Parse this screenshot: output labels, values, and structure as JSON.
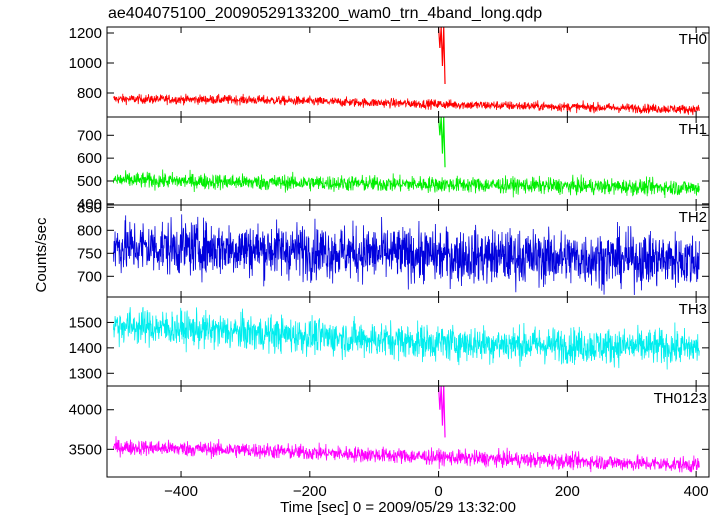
{
  "chart_data": {
    "type": "line",
    "title": "ae404075100_20090529133200_wam0_trn_4band_long.qdp",
    "xlabel": "Time [sec] 0 = 2009/05/29 13:32:00",
    "ylabel": "Counts/sec",
    "xlim": [
      -515,
      420
    ],
    "x_ticks": [
      -400,
      -200,
      0,
      200,
      400
    ],
    "x_tick_labels": [
      "−400",
      "−200",
      "0",
      "200",
      "400"
    ],
    "grid": false,
    "panels": [
      {
        "name": "TH0",
        "color": "#ff0000",
        "ylim": [
          640,
          1240
        ],
        "y_ticks": [
          800,
          1000,
          1200
        ],
        "series_profile": {
          "x": [
            -505,
            -300,
            0,
            405
          ],
          "y": [
            760,
            755,
            725,
            690
          ]
        },
        "noise": 22,
        "spike": {
          "x": [
            0,
            2,
            4,
            6,
            8,
            10
          ],
          "y": [
            1240,
            1100,
            1240,
            980,
            1240,
            860
          ]
        }
      },
      {
        "name": "TH1",
        "color": "#00ee00",
        "ylim": [
          395,
          780
        ],
        "y_ticks": [
          400,
          500,
          600,
          700
        ],
        "series_profile": {
          "x": [
            -505,
            -300,
            0,
            405
          ],
          "y": [
            505,
            495,
            485,
            470
          ]
        },
        "noise": 25,
        "spike": {
          "x": [
            0,
            2,
            4,
            6,
            8,
            10
          ],
          "y": [
            780,
            700,
            780,
            620,
            780,
            560
          ]
        }
      },
      {
        "name": "TH2",
        "color": "#0000dd",
        "ylim": [
          655,
          855
        ],
        "y_ticks": [
          700,
          750,
          800,
          850
        ],
        "series_profile": {
          "x": [
            -505,
            -300,
            0,
            405
          ],
          "y": [
            765,
            760,
            745,
            735
          ]
        },
        "noise": 42,
        "spike": null
      },
      {
        "name": "TH3",
        "color": "#00eeee",
        "ylim": [
          1250,
          1600
        ],
        "y_ticks": [
          1300,
          1400,
          1500
        ],
        "series_profile": {
          "x": [
            -505,
            -300,
            0,
            405
          ],
          "y": [
            1490,
            1460,
            1420,
            1400
          ]
        },
        "noise": 50,
        "spike": null
      },
      {
        "name": "TH0123",
        "color": "#ff00ff",
        "ylim": [
          3150,
          4300
        ],
        "y_ticks": [
          3500,
          4000
        ],
        "series_profile": {
          "x": [
            -505,
            -300,
            0,
            405
          ],
          "y": [
            3530,
            3490,
            3400,
            3300
          ]
        },
        "noise": 70,
        "spike": {
          "x": [
            0,
            2,
            4,
            6,
            8,
            10
          ],
          "y": [
            4300,
            4000,
            4300,
            3800,
            4300,
            3650
          ]
        }
      }
    ]
  }
}
